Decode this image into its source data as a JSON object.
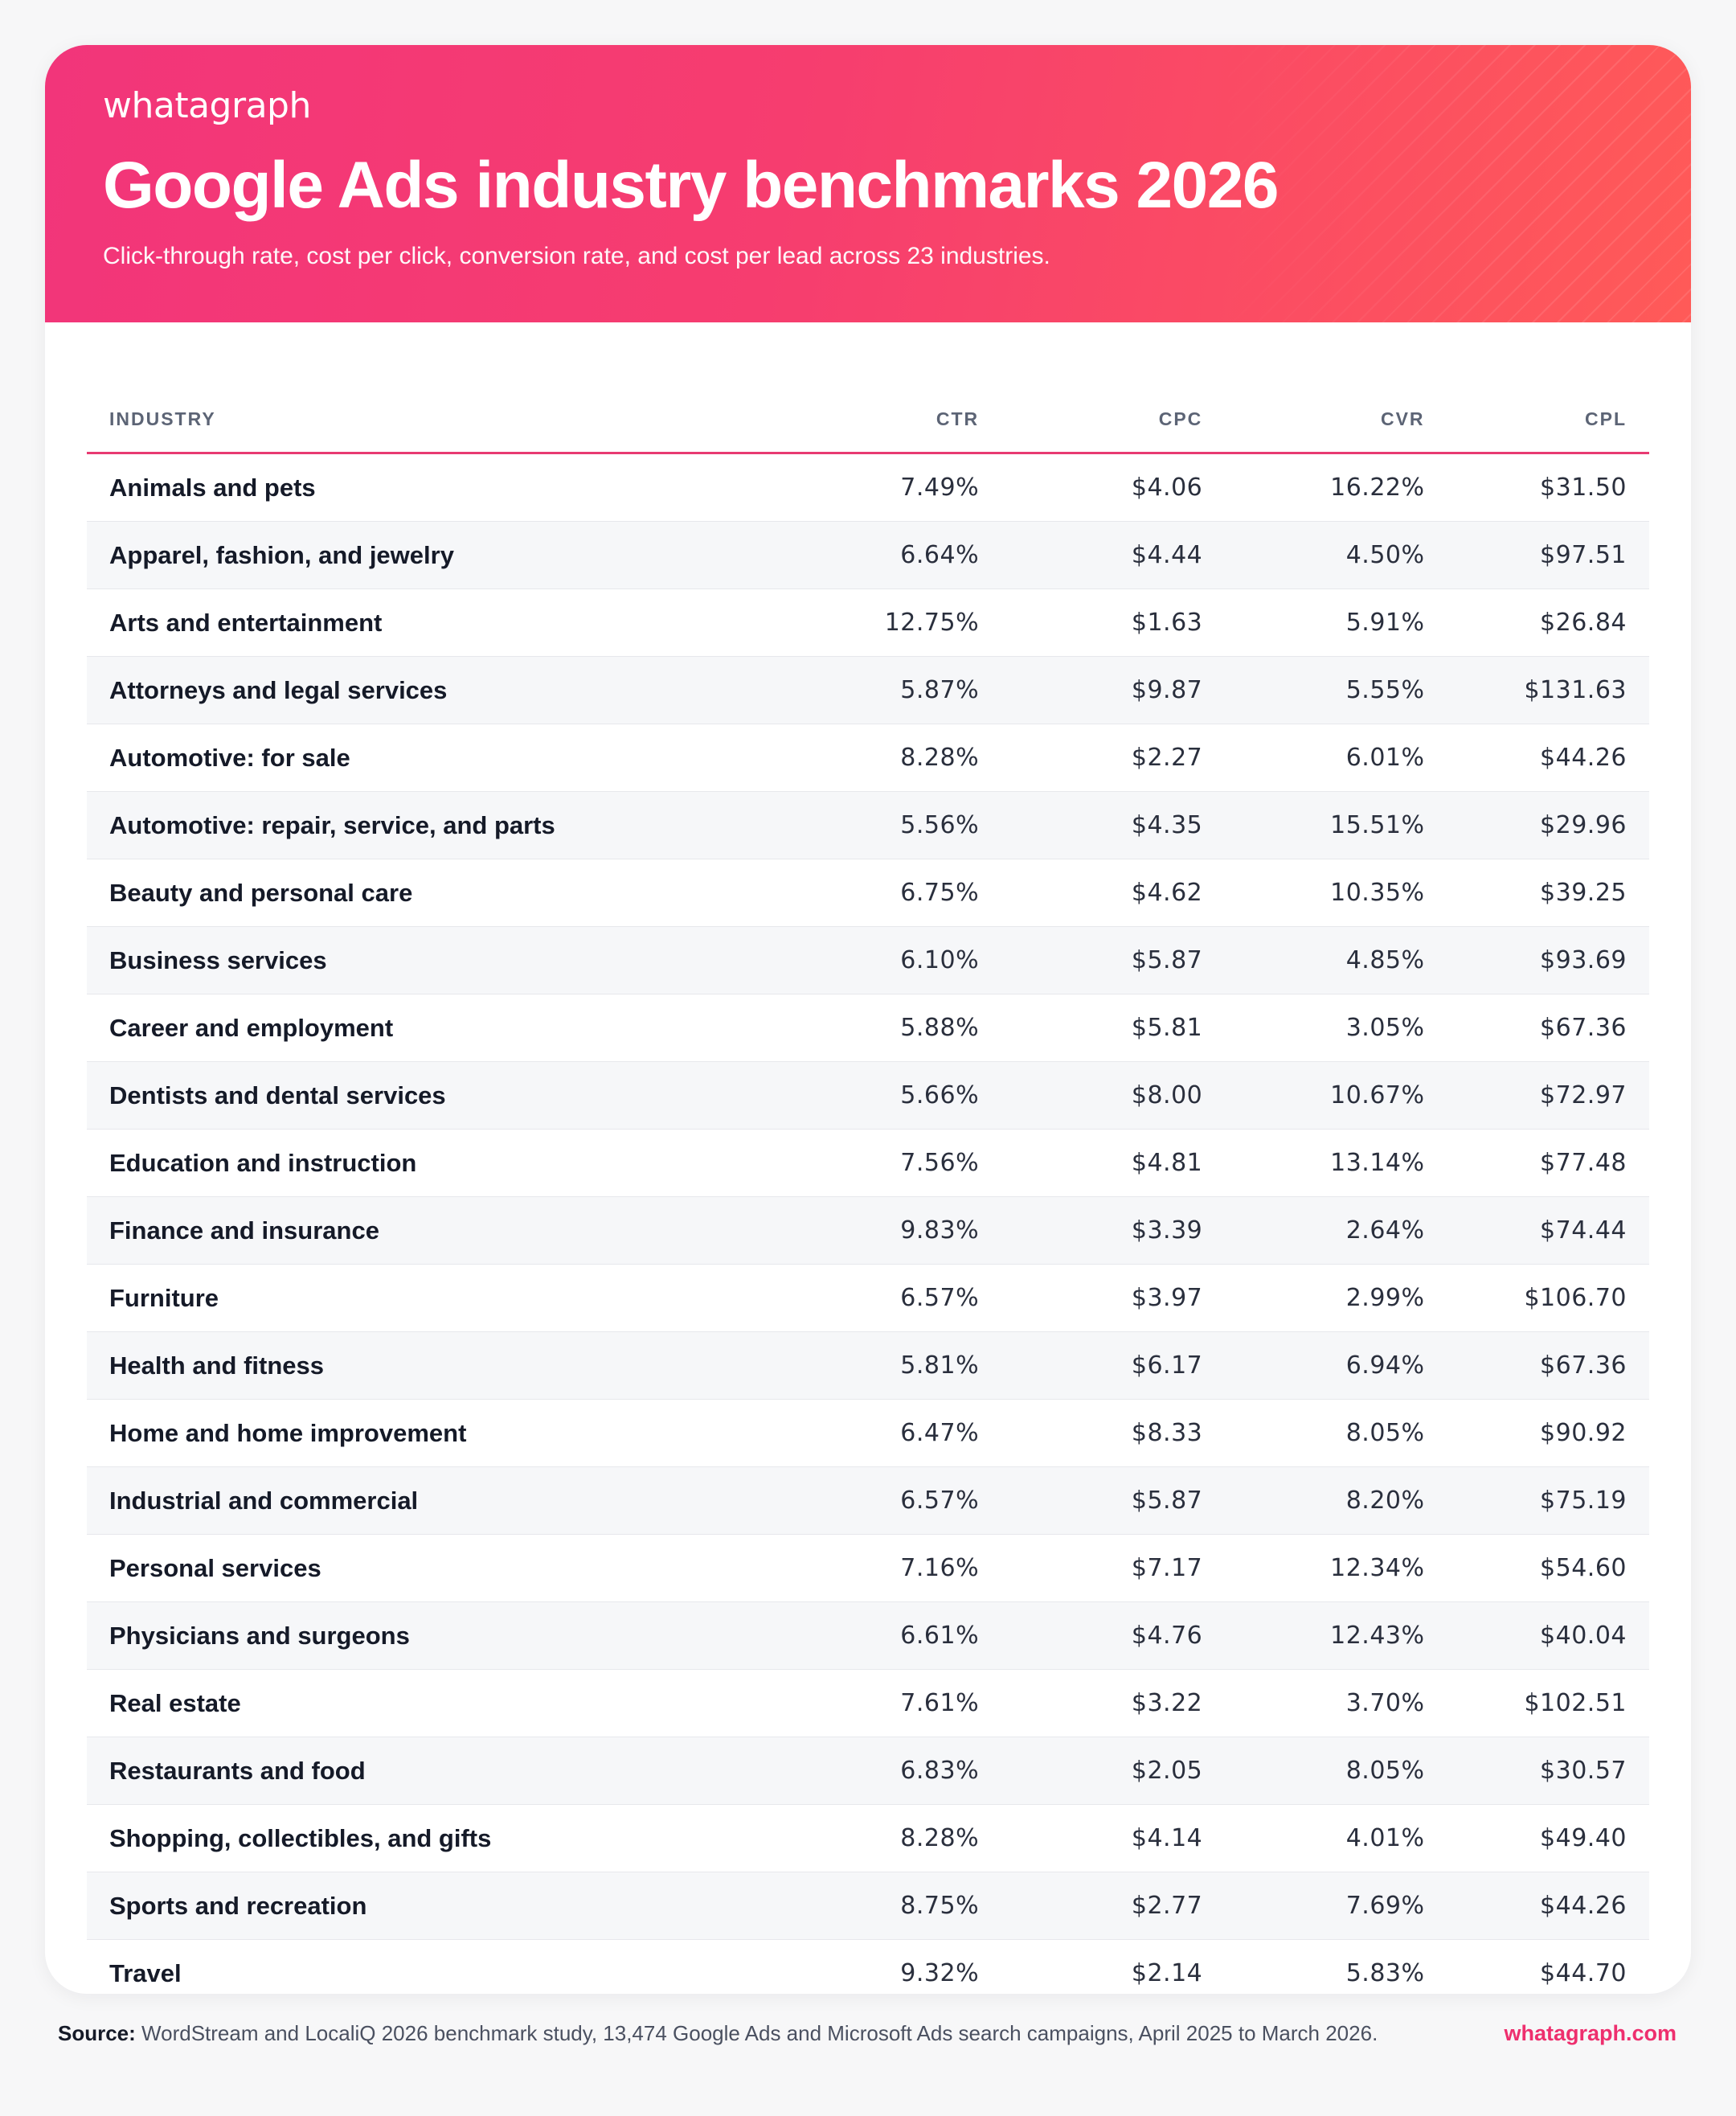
{
  "header": {
    "logo": "whatagraph",
    "title": "Google Ads industry benchmarks 2026",
    "subtitle": "Click-through rate, cost per click, conversion rate, and cost per lead across 23 industries."
  },
  "table": {
    "columns": [
      "INDUSTRY",
      "CTR",
      "CPC",
      "CVR",
      "CPL"
    ],
    "rows": [
      {
        "industry": "Animals and pets",
        "ctr": "7.49%",
        "cpc": "$4.06",
        "cvr": "16.22%",
        "cpl": "$31.50"
      },
      {
        "industry": "Apparel, fashion, and jewelry",
        "ctr": "6.64%",
        "cpc": "$4.44",
        "cvr": "4.50%",
        "cpl": "$97.51"
      },
      {
        "industry": "Arts and entertainment",
        "ctr": "12.75%",
        "cpc": "$1.63",
        "cvr": "5.91%",
        "cpl": "$26.84"
      },
      {
        "industry": "Attorneys and legal services",
        "ctr": "5.87%",
        "cpc": "$9.87",
        "cvr": "5.55%",
        "cpl": "$131.63"
      },
      {
        "industry": "Automotive: for sale",
        "ctr": "8.28%",
        "cpc": "$2.27",
        "cvr": "6.01%",
        "cpl": "$44.26"
      },
      {
        "industry": "Automotive: repair, service, and parts",
        "ctr": "5.56%",
        "cpc": "$4.35",
        "cvr": "15.51%",
        "cpl": "$29.96"
      },
      {
        "industry": "Beauty and personal care",
        "ctr": "6.75%",
        "cpc": "$4.62",
        "cvr": "10.35%",
        "cpl": "$39.25"
      },
      {
        "industry": "Business services",
        "ctr": "6.10%",
        "cpc": "$5.87",
        "cvr": "4.85%",
        "cpl": "$93.69"
      },
      {
        "industry": "Career and employment",
        "ctr": "5.88%",
        "cpc": "$5.81",
        "cvr": "3.05%",
        "cpl": "$67.36"
      },
      {
        "industry": "Dentists and dental services",
        "ctr": "5.66%",
        "cpc": "$8.00",
        "cvr": "10.67%",
        "cpl": "$72.97"
      },
      {
        "industry": "Education and instruction",
        "ctr": "7.56%",
        "cpc": "$4.81",
        "cvr": "13.14%",
        "cpl": "$77.48"
      },
      {
        "industry": "Finance and insurance",
        "ctr": "9.83%",
        "cpc": "$3.39",
        "cvr": "2.64%",
        "cpl": "$74.44"
      },
      {
        "industry": "Furniture",
        "ctr": "6.57%",
        "cpc": "$3.97",
        "cvr": "2.99%",
        "cpl": "$106.70"
      },
      {
        "industry": "Health and fitness",
        "ctr": "5.81%",
        "cpc": "$6.17",
        "cvr": "6.94%",
        "cpl": "$67.36"
      },
      {
        "industry": "Home and home improvement",
        "ctr": "6.47%",
        "cpc": "$8.33",
        "cvr": "8.05%",
        "cpl": "$90.92"
      },
      {
        "industry": "Industrial and commercial",
        "ctr": "6.57%",
        "cpc": "$5.87",
        "cvr": "8.20%",
        "cpl": "$75.19"
      },
      {
        "industry": "Personal services",
        "ctr": "7.16%",
        "cpc": "$7.17",
        "cvr": "12.34%",
        "cpl": "$54.60"
      },
      {
        "industry": "Physicians and surgeons",
        "ctr": "6.61%",
        "cpc": "$4.76",
        "cvr": "12.43%",
        "cpl": "$40.04"
      },
      {
        "industry": "Real estate",
        "ctr": "7.61%",
        "cpc": "$3.22",
        "cvr": "3.70%",
        "cpl": "$102.51"
      },
      {
        "industry": "Restaurants and food",
        "ctr": "6.83%",
        "cpc": "$2.05",
        "cvr": "8.05%",
        "cpl": "$30.57"
      },
      {
        "industry": "Shopping, collectibles, and gifts",
        "ctr": "8.28%",
        "cpc": "$4.14",
        "cvr": "4.01%",
        "cpl": "$49.40"
      },
      {
        "industry": "Sports and recreation",
        "ctr": "8.75%",
        "cpc": "$2.77",
        "cvr": "7.69%",
        "cpl": "$44.26"
      },
      {
        "industry": "Travel",
        "ctr": "9.32%",
        "cpc": "$2.14",
        "cvr": "5.83%",
        "cpl": "$44.70"
      }
    ]
  },
  "footer": {
    "source_label": "Source:",
    "source_text": "WordStream and LocaliQ 2026 benchmark study, 13,474 Google Ads and Microsoft Ads search campaigns, April 2025 to March 2026.",
    "link": "whatagraph.com"
  },
  "colors": {
    "header_gradient_start": "#f2357a",
    "header_gradient_end": "#ff5a58",
    "accent": "#e83a72",
    "link": "#ee2f6e"
  }
}
